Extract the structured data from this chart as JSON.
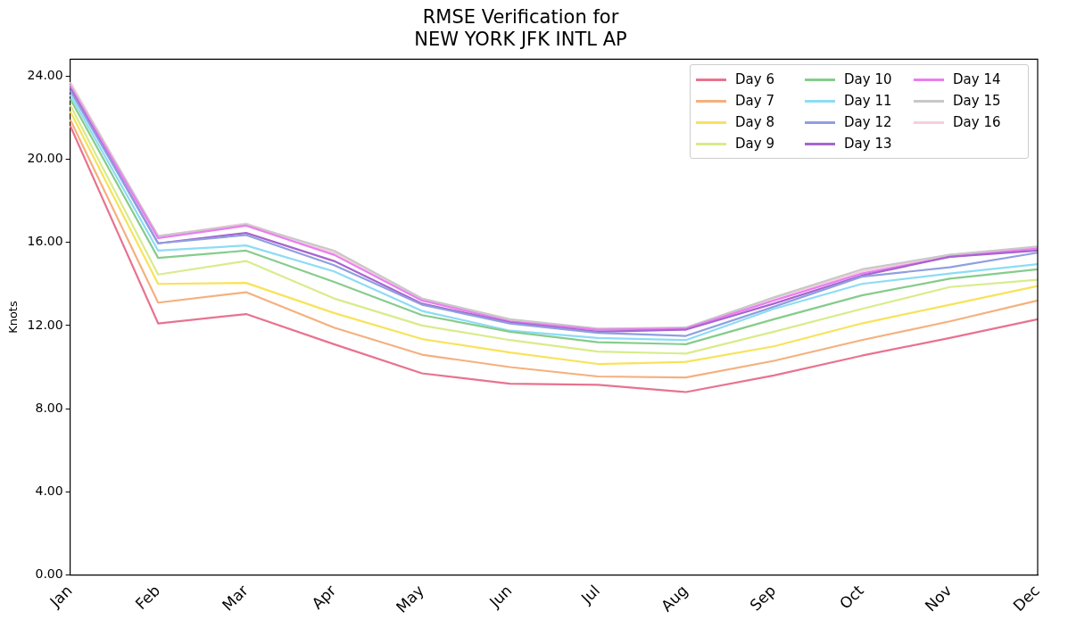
{
  "chart_data": {
    "type": "line",
    "title": "RMSE Verification for\nNEW YORK JFK INTL AP",
    "ylabel": "Knots",
    "categories": [
      "Jan",
      "Feb",
      "Mar",
      "Apr",
      "May",
      "Jun",
      "Jul",
      "Aug",
      "Sep",
      "Oct",
      "Nov",
      "Dec"
    ],
    "ylim": [
      0,
      24.8
    ],
    "yticks": [
      {
        "value": 0,
        "label": "0.00"
      },
      {
        "value": 4,
        "label": "4.00"
      },
      {
        "value": 8,
        "label": "8.00"
      },
      {
        "value": 12,
        "label": "12.00"
      },
      {
        "value": 16,
        "label": "16.00"
      },
      {
        "value": 20,
        "label": "20.00"
      },
      {
        "value": 24,
        "label": "24.00"
      }
    ],
    "legend": "top right",
    "grid": false,
    "marker": "none",
    "line_style": "solid",
    "series": [
      {
        "name": "Day 6",
        "color": "#e8738f",
        "values": [
          21.6,
          12.1,
          12.55,
          11.1,
          9.7,
          9.2,
          9.15,
          8.8,
          9.6,
          10.55,
          11.4,
          12.3
        ]
      },
      {
        "name": "Day 7",
        "color": "#f5b07e",
        "values": [
          21.9,
          13.1,
          13.6,
          11.9,
          10.6,
          10.0,
          9.55,
          9.5,
          10.3,
          11.3,
          12.2,
          13.2
        ]
      },
      {
        "name": "Day 8",
        "color": "#f7e35a",
        "values": [
          22.3,
          14.0,
          14.05,
          12.6,
          11.35,
          10.7,
          10.15,
          10.25,
          11.0,
          12.1,
          13.0,
          13.9
        ]
      },
      {
        "name": "Day 9",
        "color": "#d8ec8a",
        "values": [
          22.6,
          14.45,
          15.1,
          13.3,
          12.0,
          11.3,
          10.75,
          10.65,
          11.7,
          12.8,
          13.85,
          14.2
        ]
      },
      {
        "name": "Day 10",
        "color": "#86cc8c",
        "values": [
          22.9,
          15.25,
          15.6,
          14.1,
          12.5,
          11.7,
          11.2,
          11.1,
          12.3,
          13.45,
          14.25,
          14.7
        ]
      },
      {
        "name": "Day 11",
        "color": "#8ddcf5",
        "values": [
          23.1,
          15.6,
          15.85,
          14.6,
          12.7,
          11.75,
          11.4,
          11.3,
          12.8,
          14.0,
          14.5,
          14.95
        ]
      },
      {
        "name": "Day 12",
        "color": "#8f9fe0",
        "values": [
          23.3,
          15.95,
          16.35,
          14.9,
          13.0,
          12.1,
          11.65,
          11.5,
          12.9,
          14.35,
          14.8,
          15.5
        ]
      },
      {
        "name": "Day 13",
        "color": "#a765cf",
        "values": [
          23.4,
          15.95,
          16.45,
          15.1,
          13.05,
          12.15,
          11.7,
          11.8,
          13.05,
          14.4,
          15.3,
          15.6
        ]
      },
      {
        "name": "Day 14",
        "color": "#ea7ef0",
        "values": [
          23.5,
          16.2,
          16.8,
          15.4,
          13.2,
          12.2,
          11.8,
          11.85,
          13.2,
          14.5,
          15.3,
          15.7
        ]
      },
      {
        "name": "Day 15",
        "color": "#c8c8c8",
        "values": [
          23.6,
          16.3,
          16.85,
          15.6,
          13.3,
          12.3,
          11.85,
          11.9,
          13.35,
          14.7,
          15.4,
          15.8
        ]
      },
      {
        "name": "Day 16",
        "color": "#f5cfdd",
        "values": [
          23.7,
          16.3,
          16.9,
          15.5,
          13.25,
          12.25,
          11.8,
          11.9,
          13.3,
          14.6,
          15.4,
          15.75
        ]
      }
    ]
  }
}
